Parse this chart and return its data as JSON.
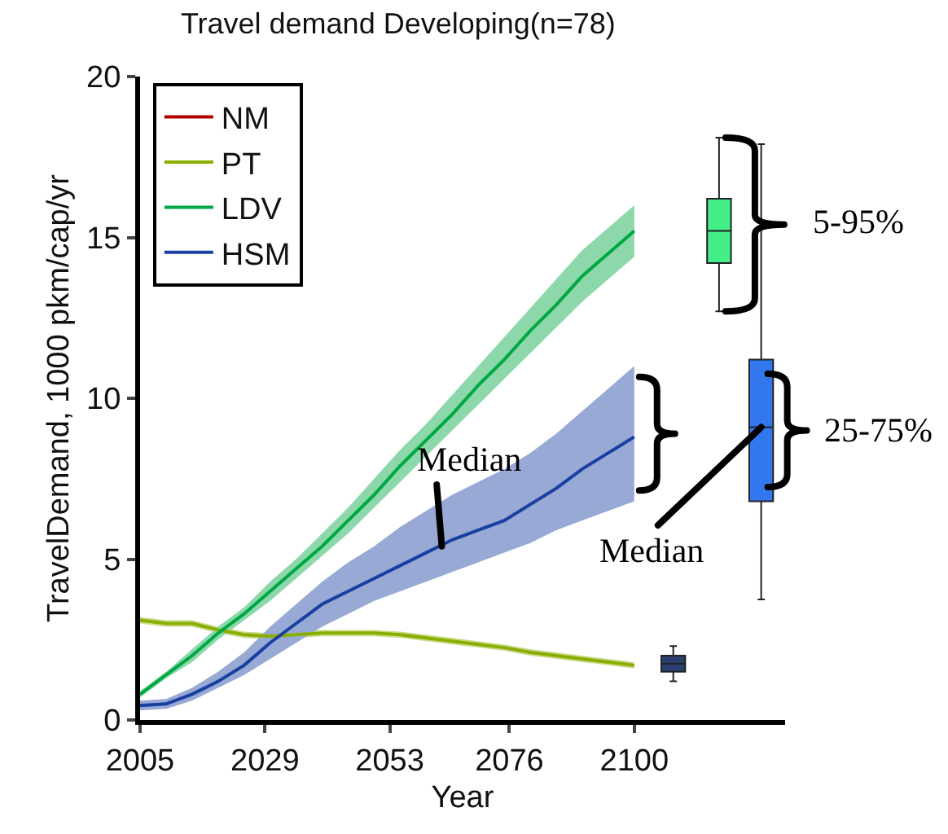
{
  "chart_data": {
    "type": "line",
    "title": "Travel demand Developing(n=78)",
    "xlabel": "Year",
    "ylabel": "TravelDemand, 1000 pkm/cap/yr",
    "x": [
      2005,
      2010,
      2015,
      2020,
      2025,
      2030,
      2035,
      2040,
      2045,
      2050,
      2055,
      2060,
      2065,
      2070,
      2075,
      2080,
      2085,
      2090,
      2095,
      2100
    ],
    "xlim": [
      2005,
      2129
    ],
    "xticks": [
      2005,
      2029,
      2053,
      2076,
      2100
    ],
    "ylim": [
      0,
      20
    ],
    "yticks": [
      0,
      5,
      10,
      15,
      20
    ],
    "grid": false,
    "legend": "top left",
    "series": [
      {
        "name": "NM",
        "color": "#b00000",
        "values": [
          null,
          null,
          null,
          null,
          null,
          null,
          null,
          null,
          null,
          null,
          null,
          null,
          null,
          null,
          null,
          null,
          null,
          null,
          null,
          null
        ]
      },
      {
        "name": "PT",
        "color": "#8aae00",
        "values": [
          3.1,
          3.0,
          3.0,
          2.8,
          2.65,
          2.6,
          2.65,
          2.7,
          2.7,
          2.7,
          2.65,
          2.55,
          2.45,
          2.35,
          2.25,
          2.1,
          2.0,
          1.9,
          1.8,
          1.7
        ],
        "lower": [
          3.0,
          2.9,
          2.9,
          2.7,
          2.55,
          2.5,
          2.55,
          2.6,
          2.6,
          2.6,
          2.55,
          2.45,
          2.35,
          2.25,
          2.15,
          2.0,
          1.9,
          1.8,
          1.7,
          1.6
        ],
        "upper": [
          3.2,
          3.1,
          3.1,
          2.9,
          2.75,
          2.7,
          2.75,
          2.8,
          2.8,
          2.8,
          2.75,
          2.65,
          2.55,
          2.45,
          2.35,
          2.2,
          2.1,
          2.0,
          1.9,
          1.8
        ]
      },
      {
        "name": "LDV",
        "color": "#00a844",
        "values": [
          0.8,
          1.4,
          2.0,
          2.7,
          3.3,
          4.0,
          4.7,
          5.4,
          6.2,
          7.0,
          7.9,
          8.7,
          9.5,
          10.4,
          11.2,
          12.1,
          12.9,
          13.8,
          14.5,
          15.2
        ],
        "lower": [
          0.7,
          1.3,
          1.8,
          2.5,
          3.1,
          3.7,
          4.4,
          5.1,
          5.8,
          6.6,
          7.4,
          8.2,
          9.0,
          9.8,
          10.6,
          11.4,
          12.2,
          13.0,
          13.7,
          14.4
        ],
        "upper": [
          0.9,
          1.5,
          2.2,
          2.9,
          3.5,
          4.3,
          5.0,
          5.8,
          6.6,
          7.5,
          8.4,
          9.2,
          10.1,
          11.0,
          11.9,
          12.8,
          13.7,
          14.6,
          15.3,
          16.0
        ]
      },
      {
        "name": "HSM",
        "color": "#1840a0",
        "values": [
          0.45,
          0.5,
          0.8,
          1.2,
          1.7,
          2.4,
          3.0,
          3.6,
          4.0,
          4.4,
          4.8,
          5.2,
          5.6,
          5.9,
          6.2,
          6.7,
          7.2,
          7.8,
          8.3,
          8.8
        ],
        "lower": [
          0.3,
          0.35,
          0.6,
          1.0,
          1.4,
          1.9,
          2.4,
          2.9,
          3.3,
          3.7,
          4.0,
          4.3,
          4.6,
          4.9,
          5.2,
          5.5,
          5.9,
          6.2,
          6.5,
          6.8
        ],
        "upper": [
          0.6,
          0.65,
          1.0,
          1.5,
          2.1,
          2.9,
          3.6,
          4.3,
          4.9,
          5.4,
          6.0,
          6.5,
          7.0,
          7.4,
          7.8,
          8.3,
          8.9,
          9.6,
          10.3,
          11.0
        ]
      },
      {
        "type": "box",
        "x": [
          2107.5,
          2116.3,
          2124.4
        ],
        "colors": [
          "#2a3f6f",
          "#44ee88",
          "#3377ee"
        ],
        "boxes": [
          {
            "low": 1.2,
            "q1": 1.5,
            "median": 1.75,
            "q3": 2.0,
            "high": 2.3
          },
          {
            "low": 12.7,
            "q1": 14.2,
            "median": 15.2,
            "q3": 16.2,
            "high": 18.1
          },
          {
            "low": 3.75,
            "q1": 6.8,
            "median": 9.1,
            "q3": 11.2,
            "high": 17.9
          }
        ]
      }
    ],
    "annotations": [
      {
        "text": "Median",
        "x": 2063,
        "y": 5.4
      },
      {
        "text": "5-95%",
        "x": 2116.3,
        "y": 15.2
      },
      {
        "text": "25-75%",
        "x": 2124.4,
        "y": 9.0
      },
      {
        "text": "Median",
        "x": 2124.4,
        "y": 9.1
      }
    ]
  }
}
